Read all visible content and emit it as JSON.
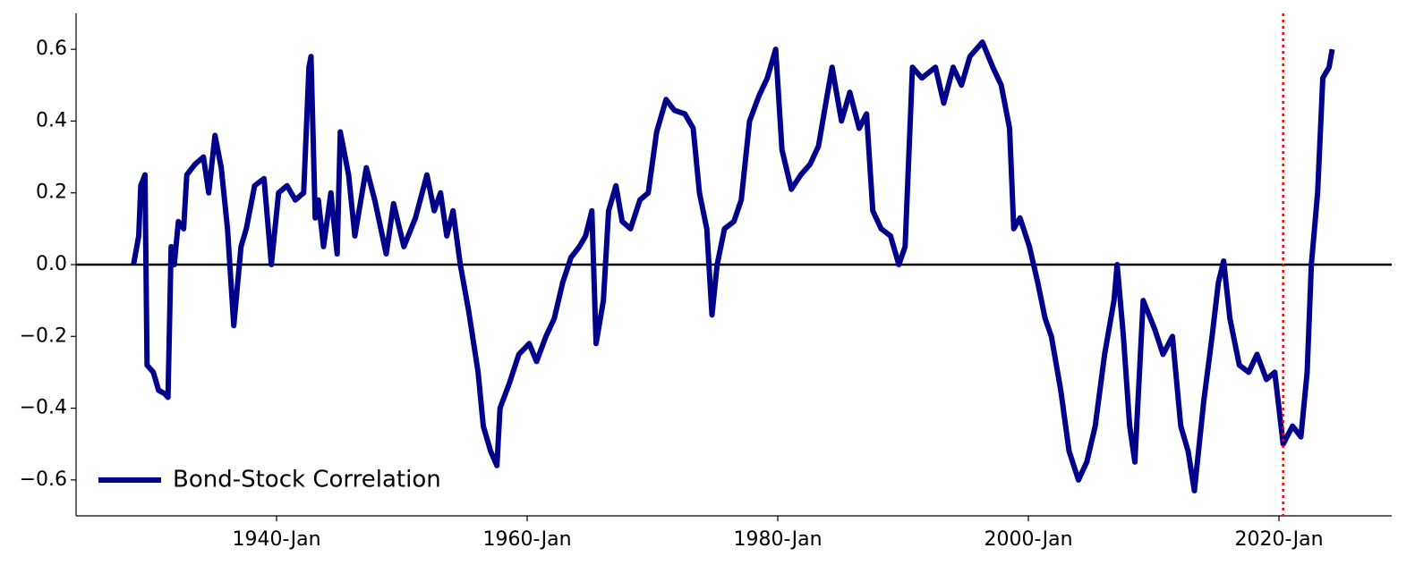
{
  "chart_data": {
    "type": "line",
    "x": [
      "1928-Aug",
      "1929-Jan",
      "1929-Mar",
      "1929-Jul",
      "1929-Sep",
      "1930-Mar",
      "1930-Aug",
      "1931-Feb",
      "1931-May",
      "1931-Aug",
      "1931-Nov",
      "1932-Mar",
      "1932-Aug",
      "1932-Nov",
      "1933-Jul",
      "1934-Mar",
      "1934-Aug",
      "1935-Feb",
      "1935-Aug",
      "1936-Feb",
      "1936-Aug",
      "1937-Mar",
      "1937-Aug",
      "1938-Apr",
      "1939-Jan",
      "1939-Aug",
      "1940-Mar",
      "1940-Nov",
      "1941-Jul",
      "1942-Mar",
      "1942-Aug",
      "1942-Oct",
      "1943-Feb",
      "1943-May",
      "1943-Oct",
      "1944-May",
      "1944-Nov",
      "1945-Feb",
      "1945-Oct",
      "1946-Apr",
      "1947-Mar",
      "1947-Nov",
      "1948-Oct",
      "1949-May",
      "1950-Mar",
      "1951-Feb",
      "1952-Jan",
      "1952-Aug",
      "1953-Feb",
      "1953-Aug",
      "1954-Feb",
      "1954-Sep",
      "1955-May",
      "1956-Feb",
      "1956-Jul",
      "1957-Feb",
      "1957-Aug",
      "1957-Nov",
      "1958-Aug",
      "1959-May",
      "1960-Mar",
      "1960-Oct",
      "1961-Jul",
      "1962-Mar",
      "1962-Nov",
      "1963-Jul",
      "1964-Mar",
      "1964-Sep",
      "1965-Mar",
      "1965-Jul",
      "1966-Feb",
      "1966-Jul",
      "1967-Feb",
      "1967-Aug",
      "1968-Apr",
      "1969-Jan",
      "1969-Sep",
      "1970-May",
      "1971-Feb",
      "1971-Oct",
      "1972-Aug",
      "1973-Apr",
      "1973-Oct",
      "1974-May",
      "1974-Oct",
      "1975-Mar",
      "1975-Oct",
      "1976-Jul",
      "1977-Feb",
      "1977-Oct",
      "1978-Jul",
      "1979-Mar",
      "1979-Nov",
      "1980-May",
      "1981-Feb",
      "1981-Nov",
      "1982-Aug",
      "1983-Apr",
      "1983-Nov",
      "1984-May",
      "1985-Feb",
      "1985-Oct",
      "1986-Jul",
      "1987-Feb",
      "1987-Aug",
      "1988-Apr",
      "1989-Jan",
      "1989-Sep",
      "1990-Mar",
      "1990-Oct",
      "1991-Jul",
      "1992-Aug",
      "1993-Apr",
      "1994-Jan",
      "1994-Sep",
      "1995-May",
      "1996-May",
      "1997-Mar",
      "1997-Nov",
      "1998-Jul",
      "1998-Nov",
      "1999-May",
      "2000-Feb",
      "2000-Oct",
      "2001-May",
      "2001-Nov",
      "2002-Aug",
      "2003-Apr",
      "2004-Jan",
      "2004-Sep",
      "2005-May",
      "2006-Feb",
      "2006-Nov",
      "2007-Feb",
      "2007-Aug",
      "2008-Feb",
      "2008-Jul",
      "2009-Mar",
      "2010-Feb",
      "2010-Oct",
      "2011-Jul",
      "2012-Mar",
      "2012-Oct",
      "2013-Apr",
      "2014-Jan",
      "2014-Sep",
      "2015-Mar",
      "2015-Aug",
      "2016-Feb",
      "2016-Nov",
      "2017-Aug",
      "2018-Apr",
      "2019-Jan",
      "2019-Sep",
      "2020-May",
      "2021-Feb",
      "2021-Oct",
      "2022-Apr",
      "2022-Aug",
      "2023-Feb",
      "2023-Jul",
      "2024-Jan",
      "2024-Apr"
    ],
    "series": [
      {
        "name": "Bond-Stock Correlation",
        "color": "#00008b",
        "values": [
          0.0,
          0.08,
          0.22,
          0.25,
          -0.28,
          -0.3,
          -0.35,
          -0.36,
          -0.37,
          0.05,
          0.0,
          0.12,
          0.1,
          0.25,
          0.28,
          0.3,
          0.2,
          0.36,
          0.27,
          0.1,
          -0.17,
          0.05,
          0.1,
          0.22,
          0.24,
          0.0,
          0.2,
          0.22,
          0.18,
          0.2,
          0.55,
          0.58,
          0.13,
          0.18,
          0.05,
          0.2,
          0.03,
          0.37,
          0.25,
          0.08,
          0.27,
          0.18,
          0.03,
          0.17,
          0.05,
          0.13,
          0.25,
          0.15,
          0.2,
          0.08,
          0.15,
          0.0,
          -0.13,
          -0.3,
          -0.45,
          -0.52,
          -0.56,
          -0.4,
          -0.33,
          -0.25,
          -0.22,
          -0.27,
          -0.2,
          -0.15,
          -0.05,
          0.02,
          0.05,
          0.08,
          0.15,
          -0.22,
          -0.1,
          0.15,
          0.22,
          0.12,
          0.1,
          0.18,
          0.2,
          0.37,
          0.46,
          0.43,
          0.42,
          0.38,
          0.2,
          0.1,
          -0.14,
          0.0,
          0.1,
          0.12,
          0.18,
          0.4,
          0.47,
          0.52,
          0.6,
          0.32,
          0.21,
          0.25,
          0.28,
          0.33,
          0.45,
          0.55,
          0.4,
          0.48,
          0.38,
          0.42,
          0.15,
          0.1,
          0.08,
          0.0,
          0.05,
          0.55,
          0.52,
          0.55,
          0.45,
          0.55,
          0.5,
          0.58,
          0.62,
          0.55,
          0.5,
          0.38,
          0.1,
          0.13,
          0.05,
          -0.05,
          -0.15,
          -0.2,
          -0.35,
          -0.52,
          -0.6,
          -0.55,
          -0.45,
          -0.25,
          -0.1,
          0.0,
          -0.2,
          -0.45,
          -0.55,
          -0.1,
          -0.18,
          -0.25,
          -0.2,
          -0.45,
          -0.52,
          -0.63,
          -0.38,
          -0.2,
          -0.05,
          0.01,
          -0.15,
          -0.28,
          -0.3,
          -0.25,
          -0.32,
          -0.3,
          -0.5,
          -0.45,
          -0.48,
          -0.3,
          0.0,
          0.2,
          0.52,
          0.55,
          0.6
        ]
      }
    ],
    "xlim": [
      "1924-Jan",
      "2029-Jan"
    ],
    "xticks": [
      "1940-Jan",
      "1960-Jan",
      "1980-Jan",
      "2000-Jan",
      "2020-Jan"
    ],
    "ylim": [
      -0.7,
      0.7
    ],
    "yticks": [
      {
        "value": -0.6,
        "label": "−0.6"
      },
      {
        "value": -0.4,
        "label": "−0.4"
      },
      {
        "value": -0.2,
        "label": "−0.2"
      },
      {
        "value": 0,
        "label": "0.0"
      },
      0.2,
      0.4,
      0.6
    ],
    "hline": {
      "y": 0,
      "color": "#000000"
    },
    "vline": {
      "x": "2020-May",
      "color": "#ff0000"
    },
    "legend": "lower left"
  }
}
